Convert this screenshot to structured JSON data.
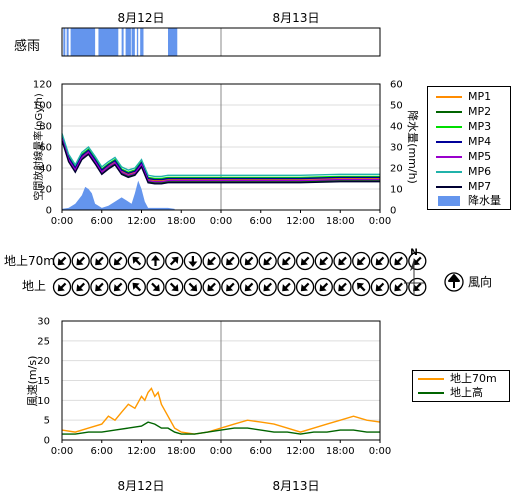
{
  "colors": {
    "rain": "#6495ed",
    "vline": "#888888",
    "grid": "#dddddd",
    "wind70": "#ff9900",
    "windGround": "#006400"
  },
  "rain_strip": {
    "label": "感雨",
    "date_labels": [
      "8月12日",
      "8月13日"
    ],
    "intervals": [
      [
        0.2,
        0.5
      ],
      [
        0.7,
        1.0
      ],
      [
        1.3,
        5.0
      ],
      [
        5.5,
        8.5
      ],
      [
        9.0,
        9.3
      ],
      [
        9.6,
        10.4
      ],
      [
        10.5,
        11.0
      ],
      [
        11.3,
        11.5
      ],
      [
        11.8,
        12.3
      ],
      [
        16.0,
        17.4
      ]
    ]
  },
  "chart_data": [
    {
      "type": "line",
      "id": "dose",
      "ylabel": "空間放射線量率(nGy/h)",
      "y2label": "降水量(mm/h)",
      "ylim": [
        0,
        120
      ],
      "y2lim": [
        0,
        60
      ],
      "yticks": [
        "0",
        "20",
        "40",
        "60",
        "80",
        "100",
        "120"
      ],
      "y2ticks": [
        "0",
        "10",
        "20",
        "30",
        "40",
        "50",
        "60"
      ],
      "xticks": [
        "0:00",
        "6:00",
        "12:00",
        "18:00",
        "0:00",
        "6:00",
        "12:00",
        "18:00",
        "0:00"
      ],
      "x_hours": [
        0,
        1,
        2,
        3,
        4,
        5,
        6,
        7,
        8,
        9,
        10,
        11,
        12,
        13,
        14,
        15,
        16,
        17,
        18,
        19,
        20,
        21,
        22,
        23,
        24,
        30,
        36,
        42,
        48
      ],
      "base_curve": [
        70,
        50,
        40,
        52,
        57,
        48,
        38,
        43,
        47,
        38,
        35,
        37,
        45,
        30,
        29,
        29,
        30,
        30,
        30,
        30,
        30,
        30,
        30,
        30,
        30,
        30,
        30,
        31,
        31
      ],
      "series": [
        {
          "name": "MP1",
          "color": "#ff8c00",
          "offset": -1
        },
        {
          "name": "MP2",
          "color": "#006400",
          "offset": -3
        },
        {
          "name": "MP3",
          "color": "#00dd00",
          "offset": 1
        },
        {
          "name": "MP4",
          "color": "#000099",
          "offset": 0
        },
        {
          "name": "MP5",
          "color": "#9900cc",
          "offset": -2
        },
        {
          "name": "MP6",
          "color": "#20b2aa",
          "offset": 3
        },
        {
          "name": "MP7",
          "color": "#000033",
          "offset": -4
        }
      ],
      "rain_series": {
        "name": "降水量",
        "values": [
          [
            0,
            0.5
          ],
          [
            1,
            1
          ],
          [
            2,
            3
          ],
          [
            3,
            7
          ],
          [
            3.5,
            11
          ],
          [
            4,
            10
          ],
          [
            4.5,
            8
          ],
          [
            5,
            3
          ],
          [
            5.5,
            2
          ],
          [
            6,
            1
          ],
          [
            7,
            2
          ],
          [
            8,
            4
          ],
          [
            9,
            6
          ],
          [
            10,
            4
          ],
          [
            10.5,
            3
          ],
          [
            11,
            8
          ],
          [
            11.5,
            14
          ],
          [
            12,
            10
          ],
          [
            12.5,
            4
          ],
          [
            13,
            1
          ],
          [
            16,
            1
          ],
          [
            17,
            0.5
          ]
        ]
      }
    },
    {
      "type": "line",
      "id": "wind",
      "ylabel": "風速(m/s)",
      "ylim": [
        0,
        30
      ],
      "yticks": [
        "0",
        "5",
        "10",
        "15",
        "20",
        "25",
        "30"
      ],
      "xticks": [
        "0:00",
        "6:00",
        "12:00",
        "18:00",
        "0:00",
        "6:00",
        "12:00",
        "18:00",
        "0:00"
      ],
      "series": [
        {
          "name": "地上70m",
          "color": "#ff9900",
          "x": [
            0,
            2,
            4,
            6,
            7,
            8,
            9,
            10,
            11,
            12,
            12.5,
            13,
            13.5,
            14,
            14.5,
            15,
            16,
            17,
            18,
            20,
            22,
            24,
            26,
            28,
            30,
            32,
            34,
            36,
            38,
            40,
            42,
            44,
            46,
            48
          ],
          "y": [
            2.5,
            2,
            3,
            4,
            6,
            5,
            7,
            9,
            8,
            11,
            10,
            12,
            13,
            11,
            12,
            9,
            6,
            3,
            2,
            1.5,
            2,
            3,
            4,
            5,
            4.5,
            4,
            3,
            2,
            3,
            4,
            5,
            6,
            5,
            4.5
          ]
        },
        {
          "name": "地上高",
          "color": "#006400",
          "x": [
            0,
            2,
            4,
            6,
            8,
            10,
            12,
            13,
            14,
            15,
            16,
            17,
            18,
            20,
            22,
            24,
            26,
            28,
            30,
            32,
            34,
            36,
            38,
            40,
            42,
            44,
            46,
            48
          ],
          "y": [
            1.5,
            1.5,
            2,
            2,
            2.5,
            3,
            3.5,
            4.5,
            4,
            3,
            3,
            2,
            1.5,
            1.5,
            2,
            2.5,
            3,
            3,
            2.5,
            2,
            2,
            1.5,
            2,
            2,
            2.5,
            2.5,
            2,
            2
          ]
        }
      ]
    }
  ],
  "wind_direction": {
    "rows": [
      {
        "label": "地上70m",
        "angles": [
          225,
          225,
          225,
          225,
          315,
          0,
          45,
          180,
          225,
          225,
          225,
          225,
          225,
          225,
          225,
          225,
          225,
          225,
          225,
          225
        ]
      },
      {
        "label": "地上",
        "angles": [
          225,
          225,
          225,
          225,
          315,
          135,
          135,
          135,
          225,
          225,
          225,
          225,
          225,
          225,
          225,
          225,
          315,
          225,
          225,
          225
        ]
      }
    ],
    "compass_label": "N",
    "legend_label": "風向"
  },
  "bottom_dates": [
    "8月12日",
    "8月13日"
  ]
}
